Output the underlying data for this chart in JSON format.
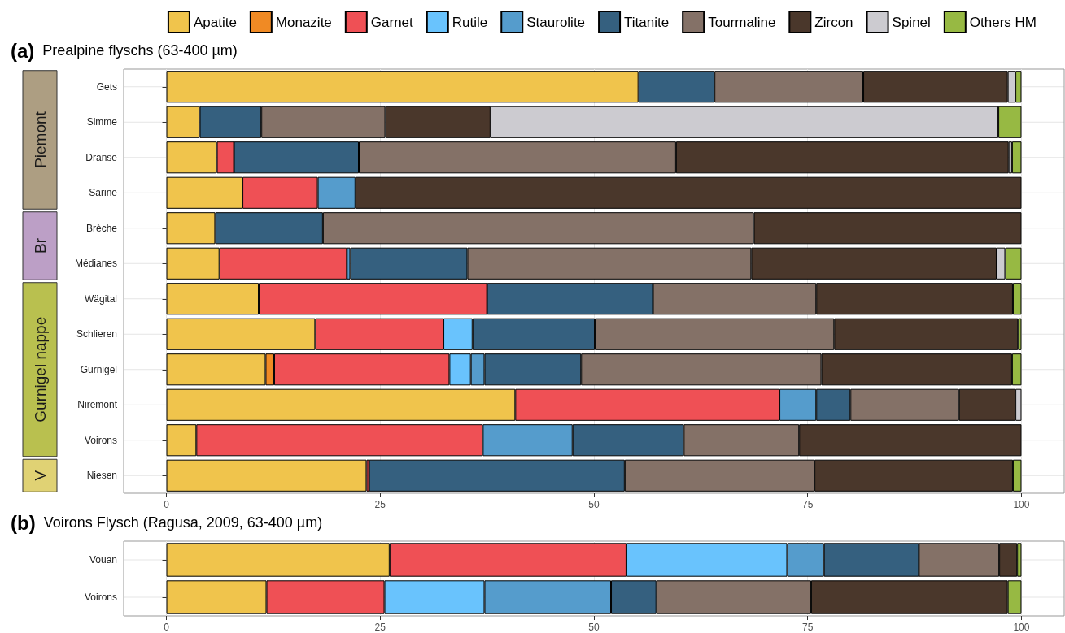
{
  "chart_data": [
    {
      "type": "bar",
      "orientation": "horizontal",
      "stacked": true,
      "title": "(a) Prealpine flyschs (63-400 µm)",
      "categories": [
        "Gets",
        "Simme",
        "Dranse",
        "Sarine",
        "Brèche",
        "Médianes",
        "Wägital",
        "Schlieren",
        "Gurnigel",
        "Niremont",
        "Voirons",
        "Niesen"
      ],
      "series": [
        {
          "name": "Apatite",
          "color": "#f0c44c",
          "values": [
            55.2,
            3.9,
            5.9,
            8.9,
            5.7,
            6.2,
            10.8,
            17.4,
            11.6,
            40.8,
            3.5,
            23.4
          ]
        },
        {
          "name": "Monazite",
          "color": "#f08a24",
          "values": [
            null,
            null,
            null,
            null,
            null,
            null,
            null,
            null,
            1.0,
            null,
            null,
            null
          ]
        },
        {
          "name": "Garnet",
          "color": "#ef5055",
          "values": [
            null,
            null,
            2.0,
            8.8,
            null,
            14.9,
            26.7,
            15.0,
            20.5,
            30.9,
            33.5,
            0.3
          ]
        },
        {
          "name": "Rutile",
          "color": "#69c3fd",
          "values": [
            null,
            null,
            null,
            null,
            null,
            null,
            null,
            3.4,
            2.5,
            null,
            null,
            null
          ]
        },
        {
          "name": "Staurolite",
          "color": "#559ccc",
          "values": [
            null,
            null,
            null,
            4.4,
            null,
            0.4,
            null,
            null,
            1.6,
            4.3,
            10.5,
            null
          ]
        },
        {
          "name": "Titanite",
          "color": "#35607f",
          "values": [
            8.9,
            7.2,
            14.6,
            null,
            12.6,
            13.7,
            19.4,
            14.3,
            11.3,
            4.0,
            13.0,
            29.9
          ]
        },
        {
          "name": "Tourmaline",
          "color": "#847167",
          "values": [
            17.4,
            14.5,
            37.1,
            null,
            50.4,
            33.2,
            19.1,
            28.0,
            28.1,
            12.7,
            13.5,
            22.2
          ]
        },
        {
          "name": "Zircon",
          "color": "#4a372b",
          "values": [
            16.9,
            12.3,
            38.9,
            77.9,
            31.3,
            28.7,
            23.0,
            21.5,
            22.3,
            6.6,
            26.0,
            23.2
          ]
        },
        {
          "name": "Spinel",
          "color": "#cccbd0",
          "values": [
            0.9,
            59.4,
            0.4,
            null,
            null,
            1.0,
            null,
            null,
            null,
            0.7,
            null,
            null
          ]
        },
        {
          "name": "Others HM",
          "color": "#97b943",
          "values": [
            0.7,
            2.7,
            1.1,
            null,
            null,
            1.9,
            1.0,
            0.4,
            1.1,
            null,
            null,
            1.0
          ]
        }
      ],
      "xlim": [
        -5,
        105
      ],
      "xticks": [
        0,
        25,
        50,
        75,
        100
      ],
      "grid": true,
      "legend": "top right",
      "annotations": [
        "Piemont",
        "Br",
        "Gurnigel nappe",
        "V"
      ]
    },
    {
      "type": "bar",
      "orientation": "horizontal",
      "stacked": true,
      "title": "(b) Voirons Flysch (Ragusa, 2009, 63-400 µm)",
      "categories": [
        "Vouan",
        "Voirons"
      ],
      "series": [
        {
          "color": "#f0c44c",
          "values": [
            26.1,
            11.7
          ]
        },
        {
          "color": "#ef5055",
          "values": [
            27.7,
            13.8
          ]
        },
        {
          "color": "#69c3fd",
          "values": [
            18.8,
            11.7
          ]
        },
        {
          "color": "#559ccc",
          "values": [
            4.3,
            14.8
          ]
        },
        {
          "color": "#35607f",
          "values": [
            11.1,
            5.3
          ]
        },
        {
          "color": "#847167",
          "values": [
            9.4,
            18.1
          ]
        },
        {
          "color": "#4a372b",
          "values": [
            2.1,
            23.0
          ]
        },
        {
          "color": "#97b943",
          "values": [
            0.5,
            1.6
          ]
        }
      ],
      "xlim": [
        -5,
        105
      ],
      "xticks": [
        0,
        25,
        50,
        75,
        100
      ],
      "grid": true
    }
  ]
}
